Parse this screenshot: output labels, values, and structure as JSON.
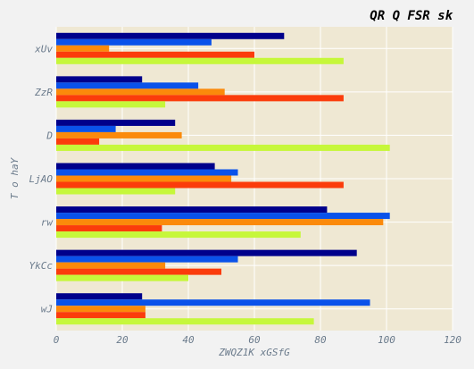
{
  "chart_data": {
    "type": "bar",
    "orientation": "horizontal",
    "title": "QR Q FSR sk",
    "xlabel": "ZWQZ1K xGSfG",
    "ylabel": "T o haY",
    "xlim": [
      0,
      120
    ],
    "xticks": [
      "0",
      "20",
      "40",
      "60",
      "80",
      "100",
      "120"
    ],
    "categories": [
      "wJ",
      "YkCc",
      "rw",
      "LjAO",
      "D",
      "ZzR",
      "xUv"
    ],
    "grid": true,
    "legend": "none",
    "series": [
      {
        "color": "#00008b",
        "values": [
          26,
          91,
          82,
          48,
          36,
          26,
          69
        ]
      },
      {
        "color": "#0a52ea",
        "values": [
          95,
          55,
          101,
          55,
          18,
          43,
          47
        ]
      },
      {
        "color": "#fb8a0b",
        "values": [
          27,
          33,
          99,
          53,
          38,
          51,
          16
        ]
      },
      {
        "color": "#fb3c0b",
        "values": [
          27,
          50,
          32,
          87,
          13,
          87,
          60
        ]
      },
      {
        "color": "#c6f73a",
        "values": [
          78,
          40,
          74,
          36,
          101,
          33,
          87
        ]
      }
    ],
    "colors": {
      "plot_background": "#efe8d3",
      "page_background": "#f2f2f2",
      "tick_text": "#6b7b8c"
    }
  }
}
